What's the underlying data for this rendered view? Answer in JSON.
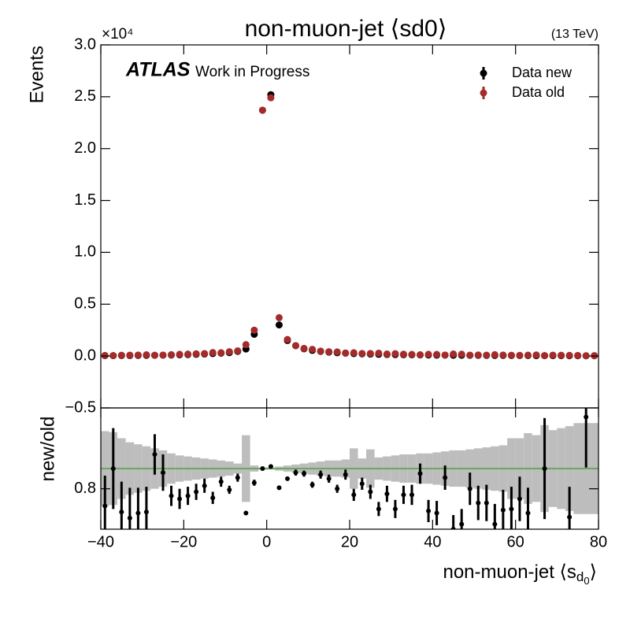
{
  "chart_data": [
    {
      "type": "scatter",
      "title": "non-muon-jet ⟨sd0⟩",
      "energy": "(13 TeV)",
      "multiplier": "×10⁴",
      "experiment": "ATLAS",
      "status": "Work in Progress",
      "ylabel": "Events",
      "legend": "upper right",
      "x": [
        -39,
        -37,
        -35,
        -33,
        -31,
        -29,
        -27,
        -25,
        -23,
        -21,
        -19,
        -17,
        -15,
        -13,
        -11,
        -9,
        -7,
        -5,
        -3,
        -1,
        1,
        3,
        5,
        7,
        9,
        11,
        13,
        15,
        17,
        19,
        21,
        23,
        25,
        27,
        29,
        31,
        33,
        35,
        37,
        39,
        41,
        43,
        45,
        47,
        49,
        51,
        53,
        55,
        57,
        59,
        61,
        63,
        65,
        67,
        69,
        71,
        73,
        75,
        77,
        79
      ],
      "series": [
        {
          "name": "Data new",
          "color": "#000000",
          "values": [
            0.004,
            0.004,
            0.005,
            0.005,
            0.006,
            0.007,
            0.008,
            0.009,
            0.01,
            0.012,
            0.014,
            0.017,
            0.02,
            0.024,
            0.028,
            0.033,
            0.045,
            0.068,
            0.21,
            2.37,
            2.52,
            0.3,
            0.15,
            0.1,
            0.07,
            0.055,
            0.045,
            0.038,
            0.032,
            0.028,
            0.024,
            0.021,
            0.019,
            0.017,
            0.015,
            0.014,
            0.013,
            0.012,
            0.011,
            0.01,
            0.009,
            0.009,
            0.008,
            0.008,
            0.007,
            0.007,
            0.006,
            0.006,
            0.006,
            0.005,
            0.005,
            0.005,
            0.004,
            0.004,
            0.004,
            0.004,
            0.003,
            0.003,
            0.003,
            0.003
          ]
        },
        {
          "name": "Data old",
          "color": "#a52a2a",
          "values": [
            0.006,
            0.004,
            0.008,
            0.009,
            0.01,
            0.012,
            0.007,
            0.009,
            0.013,
            0.017,
            0.019,
            0.022,
            0.024,
            0.034,
            0.032,
            0.042,
            0.05,
            0.11,
            0.25,
            2.37,
            2.49,
            0.37,
            0.16,
            0.1,
            0.074,
            0.065,
            0.048,
            0.042,
            0.04,
            0.03,
            0.032,
            0.025,
            0.025,
            0.028,
            0.02,
            0.023,
            0.018,
            0.016,
            0.012,
            0.017,
            0.016,
            0.01,
            0.02,
            0.018,
            0.009,
            0.011,
            0.009,
            0.013,
            0.01,
            0.008,
            0.007,
            0.009,
            0.011,
            0.004,
            0.009,
            0.008,
            0.007,
            0.006,
            0.002,
            0.004
          ]
        }
      ],
      "xlim": [
        -40,
        80
      ],
      "xticks": [
        -40,
        -20,
        0,
        20,
        40,
        60,
        80
      ],
      "ylim": [
        -0.5,
        3.0
      ],
      "yticks": [
        {
          "value": -0.5,
          "label": "−0.5"
        },
        {
          "value": 0,
          "label": "0.0"
        },
        {
          "value": 0.5,
          "label": "0.5"
        },
        {
          "value": 1.0,
          "label": "1.0"
        },
        {
          "value": 1.5,
          "label": "1.5"
        },
        {
          "value": 2.0,
          "label": "2.0"
        },
        {
          "value": 2.5,
          "label": "2.5"
        },
        {
          "value": 3.0,
          "label": "3.0"
        }
      ]
    },
    {
      "type": "ratio",
      "ylabel": "new/old",
      "xlabel": {
        "text": "non-muon-jet ⟨s",
        "sub": "d",
        "subsub": "0",
        "end": "⟩"
      },
      "x": [
        -39,
        -37,
        -35,
        -33,
        -31,
        -29,
        -27,
        -25,
        -23,
        -21,
        -19,
        -17,
        -15,
        -13,
        -11,
        -9,
        -7,
        -5,
        -3,
        -1,
        1,
        3,
        5,
        7,
        9,
        11,
        13,
        15,
        17,
        19,
        21,
        23,
        25,
        27,
        29,
        31,
        33,
        35,
        37,
        39,
        41,
        43,
        45,
        47,
        49,
        51,
        53,
        55,
        57,
        59,
        61,
        63,
        65,
        67,
        69,
        71,
        73,
        75,
        77,
        79
      ],
      "values": [
        0.63,
        1.0,
        0.57,
        0.51,
        0.56,
        0.57,
        1.14,
        0.96,
        0.73,
        0.7,
        0.73,
        0.77,
        0.83,
        0.71,
        0.87,
        0.79,
        0.91,
        0.56,
        0.86,
        1.0,
        1.02,
        0.81,
        0.9,
        0.96,
        0.95,
        0.84,
        0.94,
        0.9,
        0.8,
        0.94,
        0.74,
        0.85,
        0.77,
        0.6,
        0.75,
        0.6,
        0.74,
        0.74,
        0.95,
        0.58,
        0.56,
        0.91,
        0.4,
        0.45,
        0.8,
        0.66,
        0.66,
        0.45,
        0.59,
        0.6,
        0.7,
        0.56,
        null,
        1.0,
        null,
        null,
        0.52,
        null,
        1.51,
        null
      ],
      "errors": [
        0.3,
        0.4,
        0.3,
        0.3,
        0.25,
        0.25,
        0.2,
        0.18,
        0.1,
        0.1,
        0.09,
        0.08,
        0.07,
        0.06,
        0.05,
        0.04,
        0.04,
        0.02,
        0.03,
        0.01,
        0.01,
        0.02,
        0.02,
        0.03,
        0.03,
        0.03,
        0.04,
        0.04,
        0.04,
        0.05,
        0.06,
        0.06,
        0.07,
        0.07,
        0.08,
        0.09,
        0.09,
        0.1,
        0.1,
        0.11,
        0.12,
        0.12,
        0.14,
        0.15,
        0.16,
        0.17,
        0.18,
        0.2,
        0.2,
        0.22,
        0.22,
        0.25,
        null,
        0.5,
        null,
        null,
        0.3,
        null,
        0.5,
        null
      ],
      "band": [
        0.37,
        0.36,
        0.3,
        0.26,
        0.24,
        0.22,
        0.2,
        0.18,
        0.15,
        0.13,
        0.12,
        0.11,
        0.1,
        0.09,
        0.08,
        0.07,
        0.05,
        0.33,
        0.03,
        0.01,
        0.01,
        0.02,
        0.03,
        0.04,
        0.05,
        0.06,
        0.07,
        0.08,
        0.08,
        0.09,
        0.2,
        0.1,
        0.19,
        0.11,
        0.12,
        0.13,
        0.14,
        0.14,
        0.15,
        0.15,
        0.16,
        0.17,
        0.18,
        0.18,
        0.19,
        0.2,
        0.21,
        0.22,
        0.23,
        0.3,
        0.3,
        0.35,
        0.33,
        0.43,
        0.38,
        0.4,
        0.42,
        0.45,
        0.45,
        0.45
      ],
      "band_color": "#bdbdbd",
      "color": "#000000",
      "hline": 1,
      "hline_color": "#3a9a2a",
      "xlim": [
        -40,
        80
      ],
      "xticks": [
        {
          "value": -40,
          "label": "−40"
        },
        {
          "value": -20,
          "label": "−20"
        },
        {
          "value": 0,
          "label": "0"
        },
        {
          "value": 20,
          "label": "20"
        },
        {
          "value": 40,
          "label": "40"
        },
        {
          "value": 60,
          "label": "60"
        },
        {
          "value": 80,
          "label": "80"
        }
      ],
      "ylim": [
        0.4,
        1.6
      ],
      "yticks": [
        0.8
      ]
    }
  ]
}
